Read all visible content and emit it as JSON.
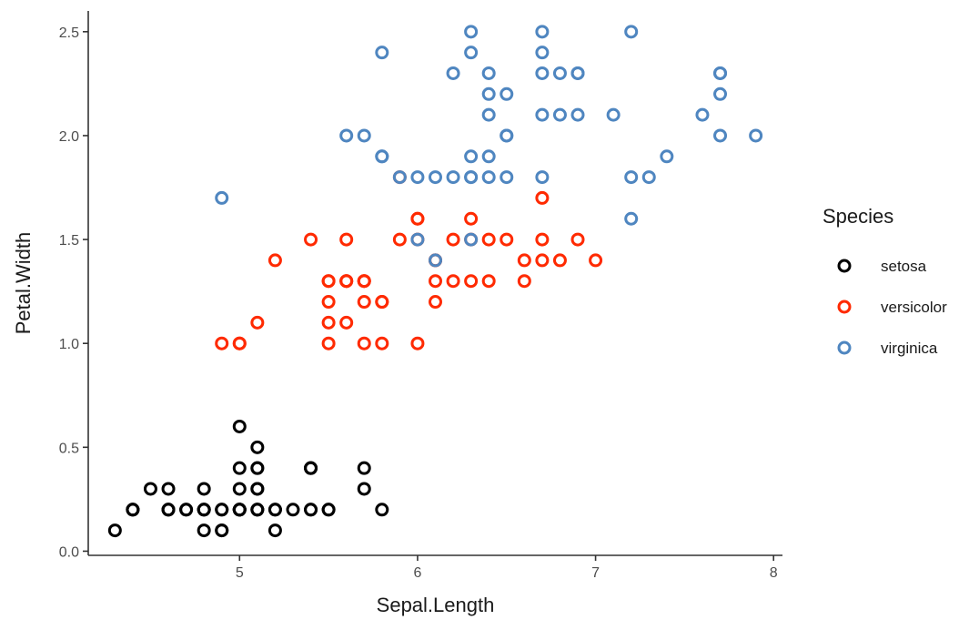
{
  "chart_data": {
    "type": "scatter",
    "xlabel": "Sepal.Length",
    "ylabel": "Petal.Width",
    "xlim": [
      4.15,
      8.05
    ],
    "ylim": [
      -0.02,
      2.6
    ],
    "xticks": [
      5,
      6,
      7,
      8
    ],
    "yticks": [
      0.0,
      0.5,
      1.0,
      1.5,
      2.0,
      2.5
    ],
    "xtick_labels": [
      "5",
      "6",
      "7",
      "8"
    ],
    "ytick_labels": [
      "0.0",
      "0.5",
      "1.0",
      "1.5",
      "2.0",
      "2.5"
    ],
    "grid": false,
    "legend": {
      "title": "Species",
      "position": "right"
    },
    "marker": "open-circle",
    "series": [
      {
        "name": "setosa",
        "color": "#000000",
        "x": [
          5.1,
          4.9,
          4.7,
          4.6,
          5.0,
          5.4,
          4.6,
          5.0,
          4.4,
          4.9,
          5.4,
          4.8,
          4.8,
          4.3,
          5.8,
          5.7,
          5.4,
          5.1,
          5.7,
          5.1,
          5.4,
          5.1,
          4.6,
          5.1,
          4.8,
          5.0,
          5.0,
          5.2,
          5.2,
          4.7,
          4.8,
          5.4,
          5.2,
          5.5,
          4.9,
          5.0,
          5.5,
          4.9,
          4.4,
          5.1,
          5.0,
          4.5,
          4.4,
          5.0,
          5.1,
          4.8,
          5.1,
          4.6,
          5.3,
          5.0
        ],
        "y": [
          0.2,
          0.2,
          0.2,
          0.2,
          0.2,
          0.4,
          0.3,
          0.2,
          0.2,
          0.1,
          0.2,
          0.2,
          0.1,
          0.1,
          0.2,
          0.4,
          0.4,
          0.3,
          0.3,
          0.3,
          0.2,
          0.4,
          0.2,
          0.5,
          0.2,
          0.2,
          0.4,
          0.2,
          0.2,
          0.2,
          0.2,
          0.4,
          0.1,
          0.2,
          0.2,
          0.2,
          0.2,
          0.1,
          0.2,
          0.2,
          0.3,
          0.3,
          0.2,
          0.6,
          0.4,
          0.3,
          0.2,
          0.2,
          0.2,
          0.2
        ]
      },
      {
        "name": "versicolor",
        "color": "#ff2a00",
        "x": [
          7.0,
          6.4,
          6.9,
          5.5,
          6.5,
          5.7,
          6.3,
          4.9,
          6.6,
          5.2,
          5.0,
          5.9,
          6.0,
          6.1,
          5.6,
          6.7,
          5.6,
          5.8,
          6.2,
          5.6,
          5.9,
          6.1,
          6.3,
          6.1,
          6.4,
          6.6,
          6.8,
          6.7,
          6.0,
          5.7,
          5.5,
          5.5,
          5.8,
          6.0,
          5.4,
          6.0,
          6.7,
          6.3,
          5.6,
          5.5,
          5.5,
          6.1,
          5.8,
          5.0,
          5.6,
          5.7,
          5.7,
          6.2,
          5.1,
          5.7
        ],
        "y": [
          1.4,
          1.5,
          1.5,
          1.3,
          1.5,
          1.3,
          1.6,
          1.0,
          1.3,
          1.4,
          1.0,
          1.5,
          1.0,
          1.4,
          1.3,
          1.4,
          1.5,
          1.0,
          1.5,
          1.1,
          1.8,
          1.3,
          1.5,
          1.2,
          1.3,
          1.4,
          1.4,
          1.7,
          1.5,
          1.0,
          1.1,
          1.0,
          1.2,
          1.6,
          1.5,
          1.6,
          1.5,
          1.3,
          1.3,
          1.3,
          1.2,
          1.4,
          1.2,
          1.0,
          1.3,
          1.2,
          1.3,
          1.3,
          1.1,
          1.3
        ]
      },
      {
        "name": "virginica",
        "color": "#4f86c0",
        "x": [
          6.3,
          5.8,
          7.1,
          6.3,
          6.5,
          7.6,
          4.9,
          7.3,
          6.7,
          7.2,
          6.5,
          6.4,
          6.8,
          5.7,
          5.8,
          6.4,
          6.5,
          7.7,
          7.7,
          6.0,
          6.9,
          5.6,
          7.7,
          6.3,
          6.7,
          7.2,
          6.2,
          6.1,
          6.4,
          7.2,
          7.4,
          7.9,
          6.4,
          6.3,
          6.1,
          7.7,
          6.3,
          6.4,
          6.0,
          6.9,
          6.7,
          6.9,
          5.8,
          6.8,
          6.7,
          6.7,
          6.3,
          6.5,
          6.2,
          5.9
        ],
        "y": [
          2.5,
          1.9,
          2.1,
          1.8,
          2.2,
          2.1,
          1.7,
          1.8,
          1.8,
          2.5,
          2.0,
          1.9,
          2.1,
          2.0,
          2.4,
          2.3,
          1.8,
          2.2,
          2.3,
          1.5,
          2.3,
          2.0,
          2.0,
          1.8,
          2.1,
          1.8,
          1.8,
          1.8,
          2.1,
          1.6,
          1.9,
          2.0,
          2.2,
          1.5,
          1.4,
          2.3,
          2.4,
          1.8,
          1.8,
          2.1,
          2.4,
          2.3,
          1.9,
          2.3,
          2.5,
          2.3,
          1.9,
          2.0,
          2.3,
          1.8
        ]
      }
    ]
  }
}
